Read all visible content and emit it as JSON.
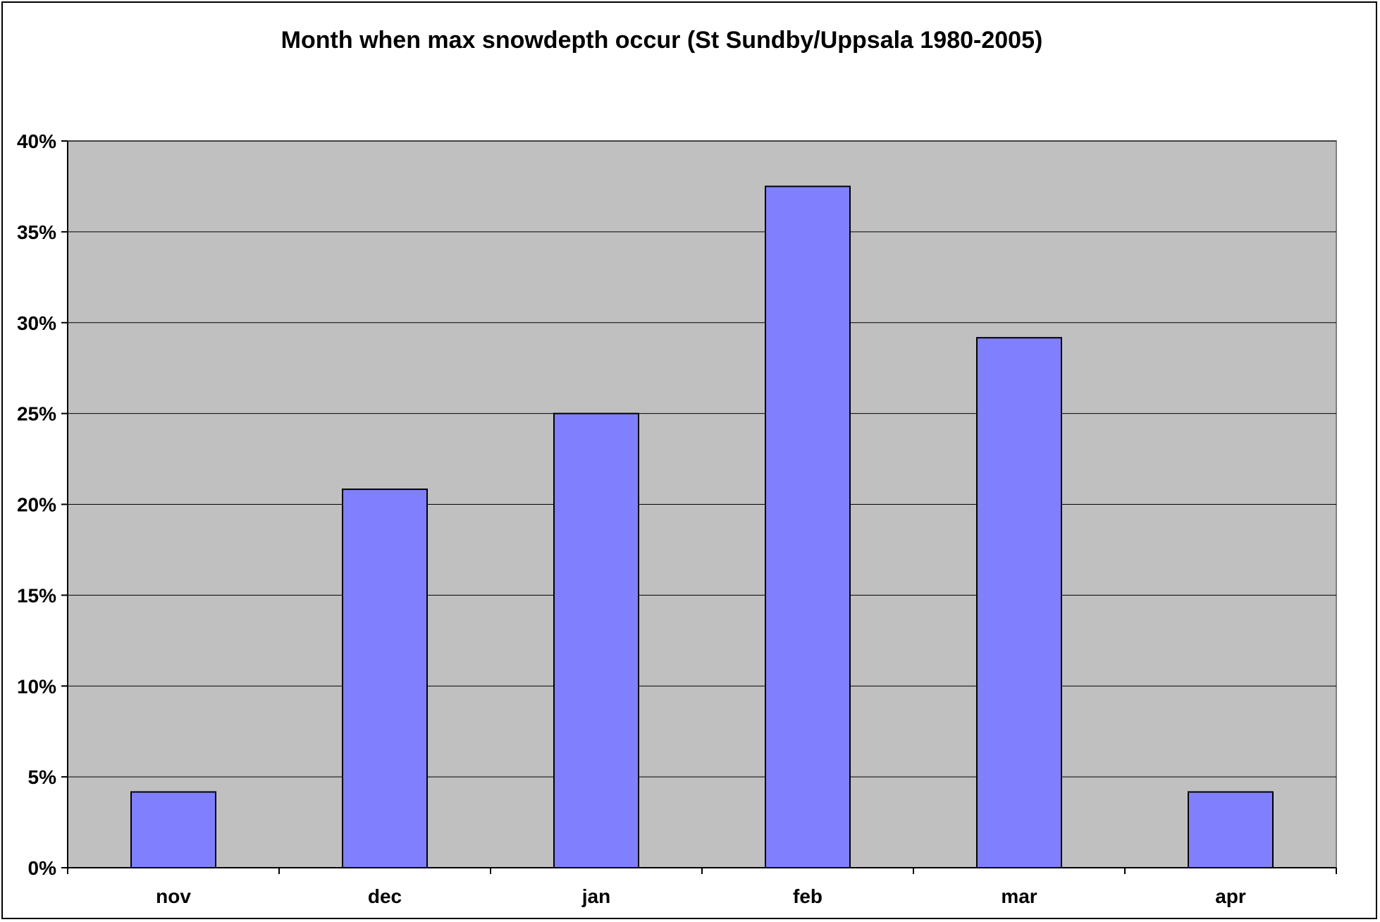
{
  "chart_data": {
    "type": "bar",
    "title": "Month when max snowdepth occur (St Sundby/Uppsala 1980-2005)",
    "xlabel": "",
    "ylabel": "",
    "categories": [
      "nov",
      "dec",
      "jan",
      "feb",
      "mar",
      "apr"
    ],
    "values": [
      0.0417,
      0.2083,
      0.25,
      0.375,
      0.2917,
      0.0417
    ],
    "ylim": [
      0,
      0.4
    ],
    "yticks": [
      0,
      0.05,
      0.1,
      0.15,
      0.2,
      0.25,
      0.3,
      0.35,
      0.4
    ],
    "ytick_labels": [
      "0%",
      "5%",
      "10%",
      "15%",
      "20%",
      "25%",
      "30%",
      "35%",
      "40%"
    ],
    "grid": true,
    "legend": "none",
    "colors": {
      "bar_fill": "#8080ff",
      "bar_stroke": "#000000",
      "plot_background": "#c0c0c0",
      "gridline": "#000000"
    }
  }
}
